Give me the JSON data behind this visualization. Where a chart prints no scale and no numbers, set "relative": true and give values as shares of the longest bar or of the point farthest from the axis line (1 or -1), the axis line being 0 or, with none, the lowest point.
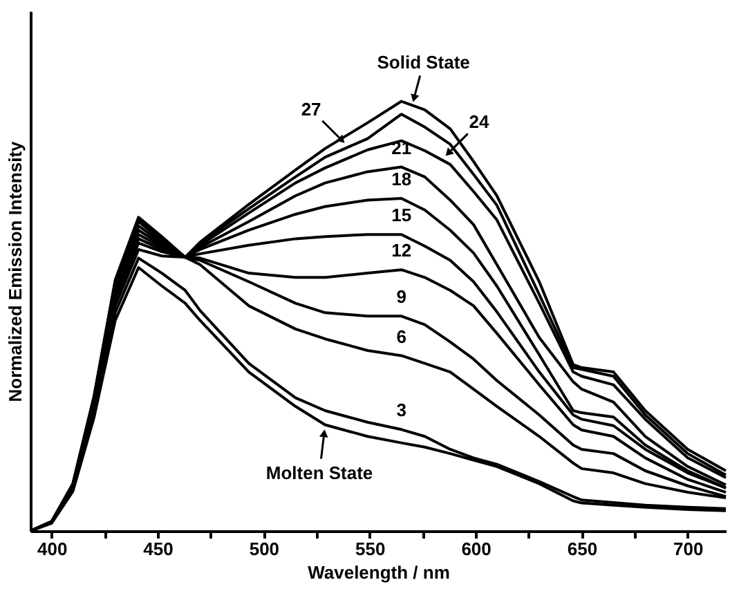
{
  "chart_data": {
    "type": "line",
    "relative": true,
    "xlabel": "Wavelength / nm",
    "ylabel": "Normalized Emission Intensity",
    "x": [
      390,
      400,
      410,
      420,
      430,
      441,
      452,
      463,
      470,
      493,
      515,
      529,
      549,
      565,
      576,
      588,
      599,
      610,
      630,
      646,
      650,
      665,
      680,
      700,
      718
    ],
    "xlim": [
      390,
      718
    ],
    "xticks": [
      400,
      {
        "value": 425,
        "label": null
      },
      450,
      {
        "value": 475,
        "label": null
      },
      500,
      {
        "value": 525,
        "label": null
      },
      550,
      {
        "value": 575,
        "label": null
      },
      600,
      {
        "value": 625,
        "label": null
      },
      650,
      {
        "value": 675,
        "label": null
      },
      700
    ],
    "grid": false,
    "legend": false,
    "line_style": "solid",
    "marker": "none",
    "series": [
      {
        "color": "#000000",
        "values": [
          0,
          0.018,
          0.092,
          0.264,
          0.49,
          0.613,
          0.57,
          0.53,
          0.49,
          0.37,
          0.29,
          0.247,
          0.22,
          0.205,
          0.195,
          0.18,
          0.165,
          0.15,
          0.11,
          0.07,
          0.065,
          0.06,
          0.055,
          0.05,
          0.047
        ]
      },
      {
        "color": "#000000",
        "values": [
          0,
          0.019,
          0.095,
          0.273,
          0.508,
          0.635,
          0.6,
          0.56,
          0.513,
          0.39,
          0.31,
          0.28,
          0.253,
          0.236,
          0.22,
          0.19,
          0.17,
          0.155,
          0.115,
          0.08,
          0.072,
          0.066,
          0.06,
          0.055,
          0.052
        ]
      },
      {
        "color": "#000000",
        "values": [
          0,
          0.02,
          0.098,
          0.282,
          0.524,
          0.655,
          0.64,
          0.637,
          0.62,
          0.524,
          0.47,
          0.447,
          0.42,
          0.408,
          0.39,
          0.37,
          0.33,
          0.29,
          0.22,
          0.158,
          0.145,
          0.135,
          0.11,
          0.09,
          0.077
        ]
      },
      {
        "color": "#000000",
        "values": [
          0,
          0.02,
          0.1,
          0.288,
          0.536,
          0.67,
          0.65,
          0.637,
          0.63,
          0.58,
          0.53,
          0.508,
          0.5,
          0.5,
          0.48,
          0.44,
          0.4,
          0.35,
          0.27,
          0.2,
          0.19,
          0.18,
          0.14,
          0.105,
          0.08
        ]
      },
      {
        "color": "#000000",
        "values": [
          0,
          0.02,
          0.102,
          0.292,
          0.544,
          0.68,
          0.655,
          0.637,
          0.635,
          0.6,
          0.59,
          0.59,
          0.6,
          0.608,
          0.59,
          0.56,
          0.524,
          0.46,
          0.34,
          0.247,
          0.235,
          0.22,
          0.17,
          0.12,
          0.09
        ]
      },
      {
        "color": "#000000",
        "values": [
          0,
          0.021,
          0.104,
          0.297,
          0.552,
          0.69,
          0.66,
          0.637,
          0.645,
          0.665,
          0.68,
          0.685,
          0.69,
          0.69,
          0.663,
          0.63,
          0.58,
          0.51,
          0.37,
          0.27,
          0.26,
          0.245,
          0.19,
          0.135,
          0.1
        ]
      },
      {
        "color": "#000000",
        "values": [
          0,
          0.021,
          0.105,
          0.301,
          0.56,
          0.7,
          0.665,
          0.637,
          0.655,
          0.7,
          0.737,
          0.755,
          0.77,
          0.774,
          0.747,
          0.7,
          0.647,
          0.57,
          0.41,
          0.28,
          0.275,
          0.265,
          0.2,
          0.14,
          0.1
        ]
      },
      {
        "color": "#000000",
        "values": [
          0,
          0.021,
          0.107,
          0.305,
          0.568,
          0.71,
          0.67,
          0.637,
          0.66,
          0.72,
          0.78,
          0.81,
          0.836,
          0.847,
          0.824,
          0.77,
          0.713,
          0.62,
          0.45,
          0.347,
          0.33,
          0.3,
          0.22,
          0.15,
          0.107
        ]
      },
      {
        "color": "#000000",
        "values": [
          0,
          0.022,
          0.108,
          0.31,
          0.576,
          0.72,
          0.675,
          0.637,
          0.665,
          0.74,
          0.81,
          0.845,
          0.887,
          0.908,
          0.885,
          0.853,
          0.79,
          0.724,
          0.53,
          0.37,
          0.36,
          0.34,
          0.26,
          0.17,
          0.124
        ]
      },
      {
        "color": "#000000",
        "values": [
          0,
          0.022,
          0.109,
          0.312,
          0.58,
          0.725,
          0.68,
          0.637,
          0.67,
          0.75,
          0.824,
          0.87,
          0.913,
          0.97,
          0.94,
          0.9,
          0.83,
          0.758,
          0.55,
          0.38,
          0.376,
          0.36,
          0.27,
          0.18,
          0.13
        ]
      },
      {
        "color": "#000000",
        "values": [
          0,
          0.022,
          0.11,
          0.314,
          0.584,
          0.73,
          0.685,
          0.637,
          0.672,
          0.76,
          0.84,
          0.89,
          0.95,
          1.0,
          0.98,
          0.936,
          0.86,
          0.78,
          0.58,
          0.387,
          0.38,
          0.37,
          0.28,
          0.19,
          0.14
        ]
      }
    ],
    "annotations": [
      {
        "text": "Solid State",
        "x": 570,
        "y": 0.99
      },
      {
        "text": "27",
        "x": 540,
        "y": 0.894
      },
      {
        "text": "24",
        "x": 584,
        "y": 0.864
      },
      {
        "text": "21",
        "x": 565,
        "y": 0.847
      },
      {
        "text": "18",
        "x": 565,
        "y": 0.774
      },
      {
        "text": "15",
        "x": 565,
        "y": 0.69
      },
      {
        "text": "12",
        "x": 565,
        "y": 0.608
      },
      {
        "text": "9",
        "x": 565,
        "y": 0.5
      },
      {
        "text": "6",
        "x": 565,
        "y": 0.408
      },
      {
        "text": "3",
        "x": 565,
        "y": 0.236
      },
      {
        "text": "Molten State",
        "x": 529,
        "y": 0.247
      }
    ]
  }
}
